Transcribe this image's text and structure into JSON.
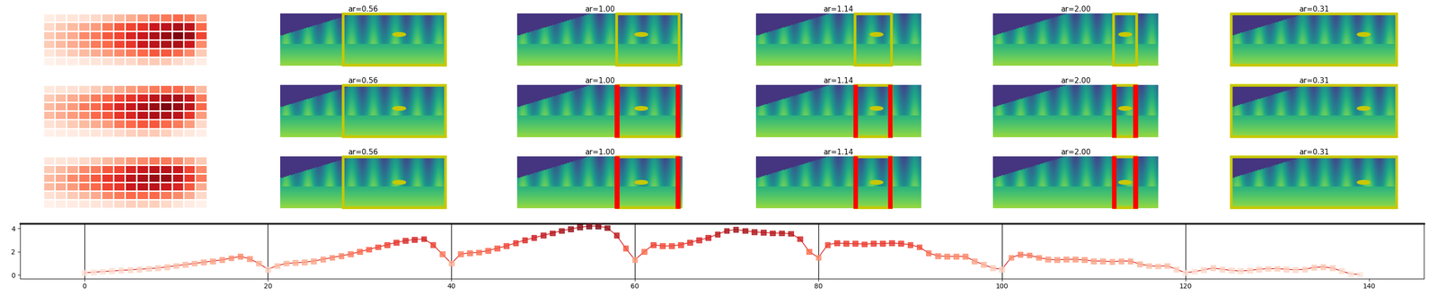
{
  "heatmaps": [
    {
      "cells": [
        [
          0.05,
          0.08,
          0.1,
          0.12,
          0.15,
          0.2,
          0.25,
          0.3,
          0.35,
          0.4,
          0.45,
          0.5,
          0.45,
          0.3
        ],
        [
          0.15,
          0.2,
          0.25,
          0.3,
          0.35,
          0.45,
          0.55,
          0.6,
          0.65,
          0.75,
          0.8,
          0.85,
          0.8,
          0.5
        ],
        [
          0.2,
          0.25,
          0.3,
          0.4,
          0.45,
          0.55,
          0.6,
          0.7,
          0.75,
          0.85,
          0.9,
          0.95,
          0.9,
          0.6
        ],
        [
          0.2,
          0.25,
          0.3,
          0.35,
          0.45,
          0.5,
          0.6,
          0.65,
          0.75,
          0.8,
          0.85,
          0.85,
          0.75,
          0.4
        ],
        [
          0.1,
          0.15,
          0.2,
          0.25,
          0.3,
          0.35,
          0.4,
          0.45,
          0.5,
          0.55,
          0.55,
          0.5,
          0.4,
          0.2
        ],
        [
          0.02,
          0.05,
          0.05,
          0.08,
          0.1,
          0.12,
          0.15,
          0.15,
          0.2,
          0.2,
          0.2,
          0.15,
          0.1,
          0.05
        ]
      ]
    },
    {
      "cells": [
        [
          0.08,
          0.1,
          0.12,
          0.15,
          0.2,
          0.25,
          0.3,
          0.35,
          0.4,
          0.45,
          0.5,
          0.5,
          0.4,
          0.25
        ],
        [
          0.2,
          0.25,
          0.3,
          0.35,
          0.45,
          0.5,
          0.6,
          0.65,
          0.7,
          0.8,
          0.85,
          0.85,
          0.75,
          0.45
        ],
        [
          0.25,
          0.3,
          0.35,
          0.45,
          0.5,
          0.6,
          0.7,
          0.75,
          0.85,
          0.9,
          0.95,
          0.9,
          0.8,
          0.5
        ],
        [
          0.25,
          0.3,
          0.35,
          0.4,
          0.5,
          0.55,
          0.65,
          0.7,
          0.8,
          0.85,
          0.85,
          0.8,
          0.65,
          0.35
        ],
        [
          0.12,
          0.15,
          0.2,
          0.25,
          0.3,
          0.35,
          0.45,
          0.5,
          0.55,
          0.55,
          0.5,
          0.45,
          0.35,
          0.15
        ],
        [
          0.03,
          0.05,
          0.06,
          0.08,
          0.1,
          0.12,
          0.15,
          0.18,
          0.2,
          0.2,
          0.18,
          0.12,
          0.08,
          0.04
        ]
      ]
    },
    {
      "cells": [
        [
          0.08,
          0.1,
          0.12,
          0.15,
          0.2,
          0.25,
          0.3,
          0.35,
          0.4,
          0.45,
          0.45,
          0.4,
          0.3,
          0.2
        ],
        [
          0.2,
          0.25,
          0.3,
          0.4,
          0.45,
          0.55,
          0.6,
          0.7,
          0.75,
          0.8,
          0.8,
          0.75,
          0.6,
          0.4
        ],
        [
          0.25,
          0.3,
          0.4,
          0.45,
          0.55,
          0.65,
          0.7,
          0.8,
          0.85,
          0.9,
          0.9,
          0.8,
          0.65,
          0.45
        ],
        [
          0.25,
          0.3,
          0.35,
          0.45,
          0.5,
          0.6,
          0.65,
          0.75,
          0.8,
          0.8,
          0.75,
          0.7,
          0.55,
          0.3
        ],
        [
          0.12,
          0.15,
          0.2,
          0.25,
          0.3,
          0.4,
          0.45,
          0.5,
          0.5,
          0.5,
          0.45,
          0.4,
          0.3,
          0.15
        ],
        [
          0.03,
          0.05,
          0.06,
          0.08,
          0.1,
          0.12,
          0.15,
          0.18,
          0.18,
          0.18,
          0.15,
          0.1,
          0.06,
          0.03
        ]
      ]
    }
  ],
  "color_range": [
    0,
    1
  ],
  "panel_rows": [
    [
      "ar=0.56",
      "ar=1.00",
      "ar=1.14",
      "ar=2.00",
      "ar=0.31"
    ],
    [
      "ar=0.56",
      "ar=1.00",
      "ar=1.14",
      "ar=2.00",
      "ar=0.31"
    ],
    [
      "ar=0.56",
      "ar=1.00",
      "ar=1.14",
      "ar=2.00",
      "ar=0.31"
    ]
  ],
  "chart_data": {
    "type": "line",
    "color": "#d62728",
    "marker": "s",
    "x": [
      0,
      1,
      2,
      3,
      4,
      5,
      6,
      7,
      8,
      9,
      10,
      11,
      12,
      13,
      14,
      15,
      16,
      17,
      18,
      19,
      20,
      21,
      22,
      23,
      24,
      25,
      26,
      27,
      28,
      29,
      30,
      31,
      32,
      33,
      34,
      35,
      36,
      37,
      38,
      39,
      40,
      41,
      42,
      43,
      44,
      45,
      46,
      47,
      48,
      49,
      50,
      51,
      52,
      53,
      54,
      55,
      56,
      57,
      58,
      59,
      60,
      61,
      62,
      63,
      64,
      65,
      66,
      67,
      68,
      69,
      70,
      71,
      72,
      73,
      74,
      75,
      76,
      77,
      78,
      79,
      80,
      81,
      82,
      83,
      84,
      85,
      86,
      87,
      88,
      89,
      90,
      91,
      92,
      93,
      94,
      95,
      96,
      97,
      98,
      99,
      100,
      101,
      102,
      103,
      104,
      105,
      106,
      107,
      108,
      109,
      110,
      111,
      112,
      113,
      114,
      115,
      116,
      117,
      118,
      119,
      120,
      121,
      122,
      123,
      124,
      125,
      126,
      127,
      128,
      129,
      130,
      131,
      132,
      133,
      134,
      135,
      136,
      137,
      138,
      139
    ],
    "values": [
      0.2,
      0.25,
      0.3,
      0.35,
      0.4,
      0.45,
      0.5,
      0.55,
      0.6,
      0.7,
      0.8,
      0.9,
      1.0,
      1.1,
      1.2,
      1.3,
      1.45,
      1.6,
      1.4,
      1.0,
      0.5,
      0.8,
      1.0,
      1.05,
      1.1,
      1.2,
      1.35,
      1.5,
      1.65,
      1.8,
      2.0,
      2.2,
      2.4,
      2.6,
      2.8,
      2.95,
      3.05,
      3.1,
      2.6,
      1.8,
      1.0,
      1.8,
      1.9,
      1.95,
      2.1,
      2.3,
      2.5,
      2.75,
      3.0,
      3.2,
      3.4,
      3.6,
      3.8,
      3.95,
      4.1,
      4.2,
      4.2,
      4.05,
      3.4,
      2.3,
      1.3,
      2.0,
      2.6,
      2.5,
      2.5,
      2.6,
      2.8,
      3.0,
      3.2,
      3.5,
      3.8,
      3.9,
      3.8,
      3.7,
      3.65,
      3.6,
      3.6,
      3.55,
      3.1,
      2.0,
      1.5,
      2.6,
      2.75,
      2.7,
      2.7,
      2.65,
      2.7,
      2.7,
      2.75,
      2.7,
      2.6,
      2.4,
      1.9,
      1.65,
      1.6,
      1.6,
      1.6,
      1.2,
      0.9,
      0.6,
      0.5,
      1.5,
      1.75,
      1.7,
      1.5,
      1.35,
      1.3,
      1.35,
      1.35,
      1.3,
      1.2,
      1.2,
      1.15,
      1.2,
      1.2,
      0.95,
      0.8,
      0.75,
      0.8,
      0.5,
      0.2,
      0.3,
      0.45,
      0.6,
      0.5,
      0.4,
      0.35,
      0.4,
      0.5,
      0.55,
      0.55,
      0.5,
      0.45,
      0.5,
      0.65,
      0.7,
      0.6,
      0.35,
      0.1,
      0.05
    ],
    "vlines": [
      0,
      20,
      40,
      60,
      80,
      100,
      120
    ],
    "xlim": [
      -7,
      146
    ],
    "ylim": [
      -0.3,
      4.4
    ],
    "xticks": [
      0,
      20,
      40,
      60,
      80,
      100,
      120,
      140
    ],
    "yticks": [
      0,
      2,
      4
    ]
  }
}
